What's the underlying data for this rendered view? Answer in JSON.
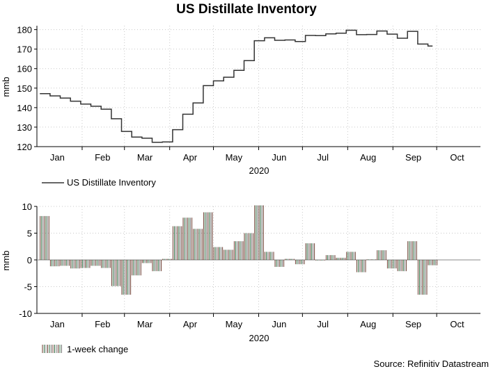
{
  "chart_data": [
    {
      "type": "line",
      "title": "US Distillate Inventory",
      "ylabel": "mmb",
      "xlabel": "2020",
      "x_tick_labels": [
        "Jan",
        "Feb",
        "Mar",
        "Apr",
        "May",
        "Jun",
        "Jul",
        "Aug",
        "Sep",
        "Oct"
      ],
      "x_tick_dates": [
        "2020-01-15",
        "2020-02-15",
        "2020-03-15",
        "2020-04-15",
        "2020-05-15",
        "2020-06-15",
        "2020-07-15",
        "2020-08-15",
        "2020-09-15",
        "2020-10-15"
      ],
      "xlim": [
        "2020-01-01",
        "2020-10-31"
      ],
      "ylim": [
        120,
        182
      ],
      "y_ticks": [
        120,
        130,
        140,
        150,
        160,
        170,
        180
      ],
      "grid": true,
      "legend_position": "bottom-left",
      "series": [
        {
          "name": "US Distillate Inventory",
          "color": "#333333",
          "step": true,
          "x": [
            "2020-01-03",
            "2020-01-10",
            "2020-01-17",
            "2020-01-24",
            "2020-01-31",
            "2020-02-07",
            "2020-02-14",
            "2020-02-21",
            "2020-02-28",
            "2020-03-06",
            "2020-03-13",
            "2020-03-20",
            "2020-03-27",
            "2020-04-03",
            "2020-04-10",
            "2020-04-17",
            "2020-04-24",
            "2020-05-01",
            "2020-05-08",
            "2020-05-15",
            "2020-05-22",
            "2020-05-29",
            "2020-06-05",
            "2020-06-12",
            "2020-06-19",
            "2020-06-26",
            "2020-07-03",
            "2020-07-10",
            "2020-07-17",
            "2020-07-24",
            "2020-07-31",
            "2020-08-07",
            "2020-08-14",
            "2020-08-21",
            "2020-08-28",
            "2020-09-04",
            "2020-09-11",
            "2020-09-18",
            "2020-09-25"
          ],
          "values": [
            147.2,
            146.0,
            144.9,
            143.3,
            141.8,
            140.7,
            139.2,
            134.3,
            127.8,
            124.9,
            124.3,
            122.2,
            122.4,
            128.7,
            136.6,
            142.4,
            151.3,
            153.7,
            155.6,
            159.1,
            164.1,
            174.3,
            175.8,
            174.5,
            174.7,
            173.9,
            177.0,
            176.9,
            177.8,
            178.2,
            179.7,
            177.4,
            177.5,
            179.3,
            177.7,
            175.6,
            179.1,
            172.6,
            171.6
          ]
        }
      ]
    },
    {
      "type": "bar",
      "ylabel": "mmb",
      "xlabel": "2020",
      "x_tick_labels": [
        "Jan",
        "Feb",
        "Mar",
        "Apr",
        "May",
        "Jun",
        "Jul",
        "Aug",
        "Sep",
        "Oct"
      ],
      "x_tick_dates": [
        "2020-01-15",
        "2020-02-15",
        "2020-03-15",
        "2020-04-15",
        "2020-05-15",
        "2020-06-15",
        "2020-07-15",
        "2020-08-15",
        "2020-09-15",
        "2020-10-15"
      ],
      "xlim": [
        "2020-01-01",
        "2020-10-31"
      ],
      "ylim": [
        -10,
        10
      ],
      "y_ticks": [
        -10,
        -5,
        0,
        5,
        10
      ],
      "grid": true,
      "legend_position": "bottom-left",
      "series": [
        {
          "name": "1-week change",
          "colors": [
            "#6b3a2e",
            "#2f6b3f",
            "#777777"
          ],
          "x": [
            "2020-01-03",
            "2020-01-10",
            "2020-01-17",
            "2020-01-24",
            "2020-01-31",
            "2020-02-07",
            "2020-02-14",
            "2020-02-21",
            "2020-02-28",
            "2020-03-06",
            "2020-03-13",
            "2020-03-20",
            "2020-03-27",
            "2020-04-03",
            "2020-04-10",
            "2020-04-17",
            "2020-04-24",
            "2020-05-01",
            "2020-05-08",
            "2020-05-15",
            "2020-05-22",
            "2020-05-29",
            "2020-06-05",
            "2020-06-12",
            "2020-06-19",
            "2020-06-26",
            "2020-07-03",
            "2020-07-10",
            "2020-07-17",
            "2020-07-24",
            "2020-07-31",
            "2020-08-07",
            "2020-08-14",
            "2020-08-21",
            "2020-08-28",
            "2020-09-04",
            "2020-09-11",
            "2020-09-18",
            "2020-09-25"
          ],
          "values": [
            8.2,
            -1.2,
            -1.1,
            -1.6,
            -1.5,
            -1.1,
            -1.5,
            -4.9,
            -6.5,
            -2.9,
            -0.6,
            -2.1,
            0.2,
            6.3,
            7.9,
            5.8,
            8.9,
            2.4,
            1.9,
            3.5,
            5.0,
            10.2,
            1.5,
            -1.3,
            0.2,
            -0.8,
            3.1,
            -0.1,
            0.9,
            0.4,
            1.5,
            -2.3,
            0.1,
            1.8,
            -1.6,
            -2.1,
            3.5,
            -6.5,
            -1.0
          ]
        }
      ]
    }
  ],
  "source": "Source: Refinitiv Datastream"
}
